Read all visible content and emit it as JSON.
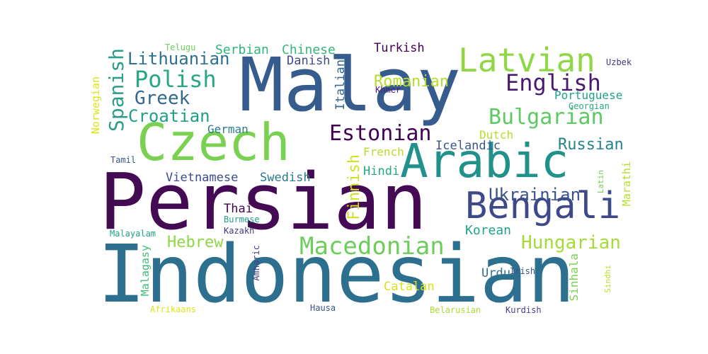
{
  "words": [
    {
      "text": "Persian",
      "color": "#440a53"
    },
    {
      "text": "Indonesian",
      "color": "#2d6f8e"
    },
    {
      "text": "Malay",
      "color": "#365c8d"
    },
    {
      "text": "Czech",
      "color": "#7ad151"
    },
    {
      "text": "Arabic",
      "color": "#21918c"
    },
    {
      "text": "Bengali",
      "color": "#3e4989"
    },
    {
      "text": "Latvian",
      "color": "#8fd744"
    },
    {
      "text": "Macedonian",
      "color": "#6ccd5a"
    },
    {
      "text": "Spanish",
      "color": "#2a9d8a"
    },
    {
      "text": "Polish",
      "color": "#26a784"
    },
    {
      "text": "Bulgarian",
      "color": "#5ec962"
    },
    {
      "text": "English",
      "color": "#481a6c"
    },
    {
      "text": "Estonian",
      "color": "#440154"
    },
    {
      "text": "Hungarian",
      "color": "#a5db36"
    },
    {
      "text": "Lithuanian",
      "color": "#2c728e"
    },
    {
      "text": "Greek",
      "color": "#31688e"
    },
    {
      "text": "Croatian",
      "color": "#1f9e89"
    },
    {
      "text": "Russian",
      "color": "#26828e"
    },
    {
      "text": "Ukrainian",
      "color": "#3b528b"
    },
    {
      "text": "Finnish",
      "color": "#d2e21b"
    },
    {
      "text": "Romanian",
      "color": "#b5de2b"
    },
    {
      "text": "Hebrew",
      "color": "#8fd744"
    },
    {
      "text": "Korean",
      "color": "#20a386"
    },
    {
      "text": "Serbian",
      "color": "#2fb47c"
    },
    {
      "text": "Chinese",
      "color": "#35b779"
    },
    {
      "text": "Turkish",
      "color": "#440154"
    },
    {
      "text": "Danish",
      "color": "#3e4a89"
    },
    {
      "text": "Italian",
      "color": "#31688e"
    },
    {
      "text": "German",
      "color": "#287d8e"
    },
    {
      "text": "Vietnamese",
      "color": "#3e4a89"
    },
    {
      "text": "Swedish",
      "color": "#29798e"
    },
    {
      "text": "Hindi",
      "color": "#22a884"
    },
    {
      "text": "French",
      "color": "#b8de29"
    },
    {
      "text": "Icelandic",
      "color": "#39568c"
    },
    {
      "text": "Dutch",
      "color": "#b5de2b"
    },
    {
      "text": "Portuguese",
      "color": "#1fa088"
    },
    {
      "text": "Thai",
      "color": "#440154"
    },
    {
      "text": "Sinhala",
      "color": "#7ad151"
    },
    {
      "text": "Norwegian",
      "color": "#dde318"
    },
    {
      "text": "Malagasy",
      "color": "#3dbc74"
    },
    {
      "text": "Catalan",
      "color": "#d8e219"
    },
    {
      "text": "Urdu",
      "color": "#2c728e"
    },
    {
      "text": "Marathi",
      "color": "#b5de2b"
    },
    {
      "text": "Telugu",
      "color": "#6ccd5a"
    },
    {
      "text": "Khmer",
      "color": "#481f70"
    },
    {
      "text": "Uzbek",
      "color": "#443983"
    },
    {
      "text": "Georgian",
      "color": "#22a884"
    },
    {
      "text": "Tamil",
      "color": "#3b528b"
    },
    {
      "text": "Latin",
      "color": "#75d054"
    },
    {
      "text": "Burmese",
      "color": "#1f9e89"
    },
    {
      "text": "Kazakh",
      "color": "#453781"
    },
    {
      "text": "Malayalam",
      "color": "#1fa187"
    },
    {
      "text": "Amharic",
      "color": "#433e85"
    },
    {
      "text": "Irish",
      "color": "#3b528b"
    },
    {
      "text": "Sindhi",
      "color": "#b5de2b"
    },
    {
      "text": "Afrikaans",
      "color": "#dde318"
    },
    {
      "text": "Hausa",
      "color": "#3b528b"
    },
    {
      "text": "Belarusian",
      "color": "#addc30"
    },
    {
      "text": "Kurdish",
      "color": "#433e85"
    }
  ]
}
